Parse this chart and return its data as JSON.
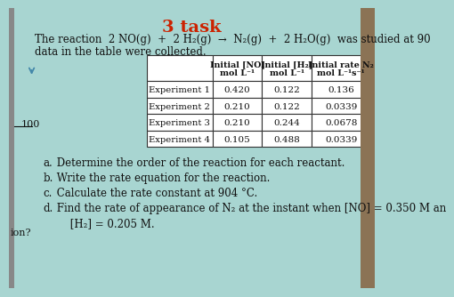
{
  "title": "3 task",
  "title_color": "#cc2200",
  "bg_color": "#a8d5d1",
  "reaction_line1": "The reaction  2 NO(g)  +  2 H₂(g)  →  N₂(g)  +  2 H₂O(g)  was studied at 90",
  "reaction_line2": "data in the table were collected.",
  "col_headers_line1": [
    "Initial [NO]",
    "Initial [H₂]",
    "Initial rate N₂"
  ],
  "col_headers_line2": [
    "mol L⁻¹",
    "mol L⁻¹",
    "mol L⁻¹s⁻¹"
  ],
  "row_labels": [
    "Experiment 1",
    "Experiment 2",
    "Experiment 3",
    "Experiment 4"
  ],
  "table_data": [
    [
      "0.420",
      "0.122",
      "0.136"
    ],
    [
      "0.210",
      "0.122",
      "0.0339"
    ],
    [
      "0.210",
      "0.244",
      "0.0678"
    ],
    [
      "0.105",
      "0.488",
      "0.0339"
    ]
  ],
  "questions": [
    [
      "a.",
      " Determine the order of the reaction for each reactant."
    ],
    [
      "b.",
      " Write the rate equation for the reaction."
    ],
    [
      "c.",
      " Calculate the rate constant at 904 °C."
    ],
    [
      "d.",
      " Find the rate of appearance of N₂ at the instant when [NO] = 0.350 M an"
    ],
    [
      "",
      "     [H₂] = 0.205 M."
    ]
  ],
  "left_label_100": "100",
  "left_label_ion": "ion?",
  "white_cell": "#ffffff",
  "border_color": "#333333",
  "text_color": "#111111"
}
